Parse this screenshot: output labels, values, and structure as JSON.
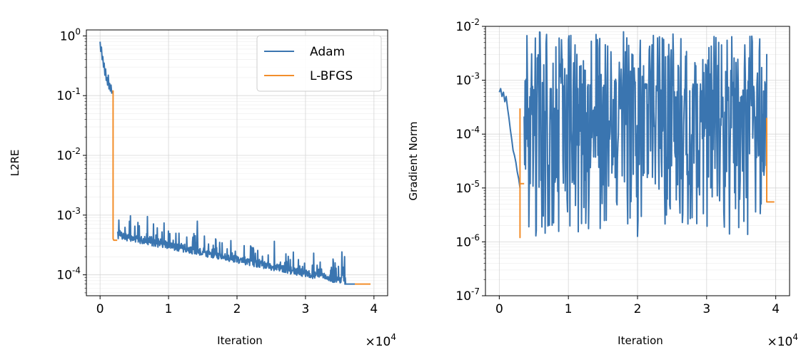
{
  "chart_data": [
    {
      "type": "line",
      "title": "",
      "xlabel": "Iteration",
      "ylabel": "L2RE",
      "x_multiplier_label": "×10",
      "x_multiplier_exp": "4",
      "xlim": [
        -0.2,
        4.2
      ],
      "ylim_log10": [
        -4.35,
        0.1
      ],
      "yscale": "log",
      "grid": true,
      "legend": {
        "location": "top-right",
        "entries": [
          "Adam",
          "L-BFGS"
        ]
      },
      "x_ticks": [
        0,
        1,
        2,
        3,
        4
      ],
      "x_tick_labels": [
        "0",
        "1",
        "2",
        "3",
        "4"
      ],
      "y_ticks_exp": [
        "0",
        "-1",
        "-2",
        "-3",
        "-4"
      ],
      "y_tick_base": "10",
      "series": [
        {
          "name": "Adam",
          "color": "#3a75b0",
          "x": [
            0.0,
            0.01,
            0.02,
            0.03,
            0.04,
            0.05,
            0.06,
            0.07,
            0.08,
            0.09,
            0.1,
            0.11,
            0.12,
            0.13,
            0.14,
            0.15,
            0.16,
            0.17,
            0.18
          ],
          "y": [
            0.8,
            0.55,
            0.65,
            0.4,
            0.45,
            0.3,
            0.35,
            0.22,
            0.28,
            0.18,
            0.2,
            0.15,
            0.22,
            0.13,
            0.16,
            0.12,
            0.15,
            0.11,
            0.12
          ]
        },
        {
          "name": "L-BFGS",
          "color": "#f28e2b",
          "x": [
            0.18,
            0.19,
            0.19,
            0.2,
            0.21,
            0.22,
            0.23,
            0.24,
            0.25
          ],
          "y": [
            0.12,
            0.12,
            0.0004,
            0.00038,
            0.00038,
            0.00038,
            0.00038,
            0.00038,
            0.00038
          ]
        },
        {
          "name": "Adam",
          "color": "#3a75b0",
          "x_range": [
            0.25,
            3.72
          ],
          "trend_start": 0.00045,
          "trend_end": 7e-05,
          "noise_seed": 7,
          "points": 700
        },
        {
          "name": "L-BFGS",
          "color": "#f28e2b",
          "x": [
            3.72,
            3.75,
            3.8,
            3.85,
            3.9,
            3.95
          ],
          "y": [
            7e-05,
            7e-05,
            7e-05,
            7e-05,
            7e-05,
            7e-05
          ]
        }
      ]
    },
    {
      "type": "line",
      "title": "",
      "xlabel": "Iteration",
      "ylabel": "Gradient Norm",
      "x_multiplier_label": "×10",
      "x_multiplier_exp": "4",
      "xlim": [
        -0.2,
        4.2
      ],
      "ylim_log10": [
        -7,
        -2
      ],
      "yscale": "log",
      "grid": true,
      "x_ticks": [
        0,
        1,
        2,
        3,
        4
      ],
      "x_tick_labels": [
        "0",
        "1",
        "2",
        "3",
        "4"
      ],
      "y_ticks_exp": [
        "-2",
        "-3",
        "-4",
        "-5",
        "-6",
        "-7"
      ],
      "y_tick_base": "10",
      "series": [
        {
          "name": "Adam",
          "color": "#3a75b0",
          "x": [
            0.0,
            0.02,
            0.04,
            0.06,
            0.08,
            0.1,
            0.12,
            0.14,
            0.16,
            0.18,
            0.2,
            0.22,
            0.24,
            0.26,
            0.28,
            0.3
          ],
          "y": [
            0.0006,
            0.0007,
            0.0005,
            0.0006,
            0.0004,
            0.0005,
            0.0003,
            0.0002,
            0.00012,
            8e-05,
            5e-05,
            4e-05,
            3e-05,
            2e-05,
            1.5e-05,
            1e-05
          ]
        },
        {
          "name": "L-BFGS",
          "color": "#f28e2b",
          "x": [
            0.3,
            0.3,
            0.3,
            0.31,
            0.33,
            0.36
          ],
          "y": [
            0.0003,
            1.2e-06,
            1.2e-05,
            1.2e-05,
            1.2e-05,
            1.2e-05
          ]
        },
        {
          "name": "Adam",
          "color": "#3a75b0",
          "x_range": [
            0.36,
            3.87
          ],
          "trend_start": 5e-05,
          "trend_end": 5e-05,
          "noise_seed": 13,
          "points": 520
        },
        {
          "name": "L-BFGS",
          "color": "#f28e2b",
          "x": [
            3.87,
            3.87,
            3.88,
            3.9,
            3.94,
            3.98
          ],
          "y": [
            0.0002,
            5.5e-06,
            5.5e-06,
            5.5e-06,
            5.5e-06,
            5.5e-06
          ]
        }
      ]
    }
  ]
}
